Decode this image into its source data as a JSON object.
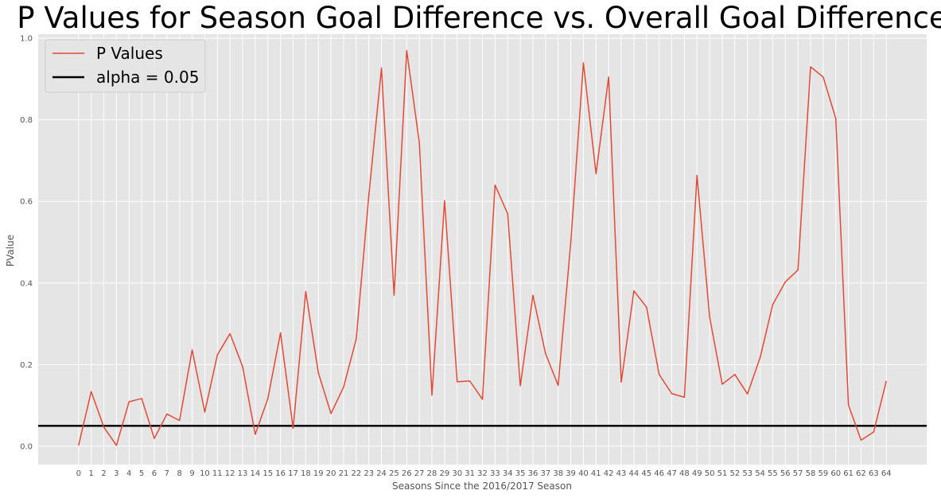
{
  "chart_data": {
    "type": "line",
    "title": "P Values for Season Goal Difference vs. Overall Goal Difference",
    "xlabel": "Seasons Since the 2016/2017 Season",
    "ylabel": "PValue",
    "ylim": [
      -0.045,
      1.01
    ],
    "xlim": [
      -3.2,
      67.2
    ],
    "yticks": [
      "0.0",
      "0.2",
      "0.4",
      "0.6",
      "0.8",
      "1.0"
    ],
    "grid": true,
    "legend_position": "top-left",
    "x": [
      0,
      1,
      2,
      3,
      4,
      5,
      6,
      7,
      8,
      9,
      10,
      11,
      12,
      13,
      14,
      15,
      16,
      17,
      18,
      19,
      20,
      21,
      22,
      23,
      24,
      25,
      26,
      27,
      28,
      29,
      30,
      31,
      32,
      33,
      34,
      35,
      36,
      37,
      38,
      39,
      40,
      41,
      42,
      43,
      44,
      45,
      46,
      47,
      48,
      49,
      50,
      51,
      52,
      53,
      54,
      55,
      56,
      57,
      58,
      59,
      60,
      61,
      62,
      63,
      64
    ],
    "xtick_labels": [
      "0",
      "1",
      "2",
      "3",
      "4",
      "5",
      "6",
      "7",
      "8",
      "9",
      "10",
      "11",
      "12",
      "13",
      "14",
      "15",
      "16",
      "17",
      "18",
      "19",
      "20",
      "21",
      "22",
      "23",
      "24",
      "25",
      "26",
      "27",
      "28",
      "29",
      "30",
      "31",
      "32",
      "33",
      "34",
      "35",
      "36",
      "37",
      "38",
      "39",
      "40",
      "41",
      "42",
      "43",
      "44",
      "45",
      "46",
      "47",
      "48",
      "49",
      "50",
      "51",
      "52",
      "53",
      "54",
      "55",
      "56",
      "57",
      "58",
      "59",
      "60",
      "61",
      "62",
      "63",
      "64"
    ],
    "series": [
      {
        "name": "P Values",
        "color": "#e24a33",
        "values": [
          0.002,
          0.134,
          0.047,
          0.002,
          0.109,
          0.117,
          0.019,
          0.079,
          0.063,
          0.236,
          0.084,
          0.224,
          0.276,
          0.195,
          0.029,
          0.117,
          0.278,
          0.044,
          0.379,
          0.18,
          0.08,
          0.145,
          0.263,
          0.615,
          0.927,
          0.37,
          0.97,
          0.744,
          0.125,
          0.602,
          0.158,
          0.16,
          0.115,
          0.64,
          0.57,
          0.148,
          0.37,
          0.227,
          0.149,
          0.5,
          0.94,
          0.668,
          0.905,
          0.157,
          0.381,
          0.341,
          0.176,
          0.129,
          0.12,
          0.664,
          0.317,
          0.152,
          0.176,
          0.128,
          0.217,
          0.347,
          0.403,
          0.432,
          0.93,
          0.905,
          0.803,
          0.101,
          0.015,
          0.035,
          0.16
        ]
      }
    ],
    "hline": {
      "name": "alpha = 0.05",
      "value": 0.05,
      "color": "#000000"
    }
  }
}
